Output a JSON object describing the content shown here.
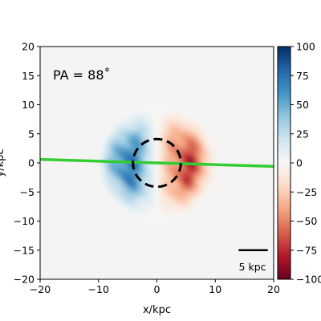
{
  "chart_data": {
    "type": "heatmap",
    "title": "",
    "annotation": "PA = 88˚",
    "xlabel": "x/kpc",
    "ylabel": "y/kpc",
    "xlim": [
      -20,
      20
    ],
    "ylim": [
      -20,
      20
    ],
    "xticks": [
      -20,
      -10,
      0,
      10,
      20
    ],
    "yticks": [
      -20,
      -15,
      -10,
      -5,
      0,
      5,
      10,
      15,
      20
    ],
    "colorbar": {
      "colormap": "RdBu",
      "range": [
        -100,
        100
      ],
      "ticks": [
        100,
        75,
        50,
        25,
        0,
        -25,
        -50,
        -75,
        -100
      ],
      "low_color": "#67001f",
      "mid_color": "#f7f7f7",
      "high_color": "#053061"
    },
    "background_color": "#f4f4f4",
    "velocity_field": {
      "description_type": "rotating disk, approaching side positive (blue) at negative x, receding side negative (red) at positive x",
      "peak_value": 95,
      "radius_kpc": 9.5,
      "hole_radius_kpc": 4.0,
      "peak_radius_kpc": 6.0,
      "slit_value_at_left": 90
    },
    "position_angle_line": {
      "color": "#33cc33",
      "points": [
        [
          -20,
          0.6
        ],
        [
          20,
          -0.6
        ]
      ]
    },
    "circle": {
      "center": [
        0,
        0
      ],
      "radius_kpc": 4.1,
      "style": "dashed",
      "color": "#000000"
    },
    "scale_bar": {
      "label": "5 kpc",
      "length_kpc": 5,
      "x_start": 14,
      "y": -15
    }
  }
}
